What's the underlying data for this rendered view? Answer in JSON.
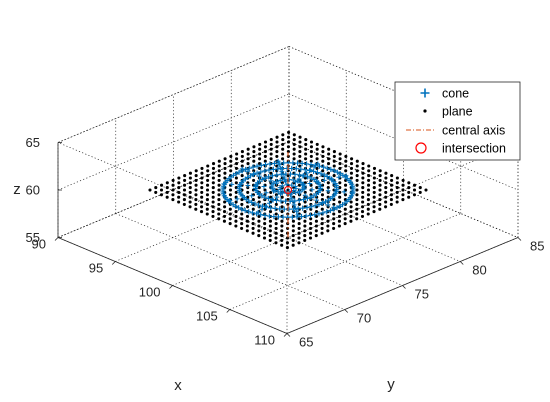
{
  "chart_data": {
    "type": "scatter3d",
    "title": "",
    "xlabel": "x",
    "ylabel": "y",
    "zlabel": "z",
    "xlim": [
      90,
      110
    ],
    "ylim": [
      65,
      85
    ],
    "zlim": [
      55,
      65
    ],
    "xticks": [
      "90",
      "95",
      "100",
      "105",
      "110"
    ],
    "yticks": [
      "65",
      "70",
      "75",
      "80",
      "85"
    ],
    "zticks": [
      "55",
      "60",
      "65"
    ],
    "grid": "dotted box",
    "legend": {
      "position": "right",
      "entries": [
        "cone",
        "plane",
        "central axis",
        "intersection"
      ]
    },
    "series": [
      {
        "name": "cone",
        "marker": "+",
        "color": "#0072BD",
        "center": [
          100,
          75,
          60
        ],
        "radius_max": 4,
        "ring_count": 4,
        "desc_z_range": [
          60,
          61
        ]
      },
      {
        "name": "plane",
        "marker": "dot",
        "color": "#000000",
        "x_range": [
          94,
          106
        ],
        "y_range": [
          69,
          81
        ],
        "z": 60,
        "spacing": 0.5
      },
      {
        "name": "central axis",
        "style": "dash-dot",
        "color": "#D95319",
        "from": [
          100,
          75,
          55
        ],
        "to": [
          100,
          75,
          64
        ]
      },
      {
        "name": "intersection",
        "marker": "circle",
        "color": "#FF0000",
        "point": [
          100,
          75,
          60
        ]
      }
    ]
  }
}
